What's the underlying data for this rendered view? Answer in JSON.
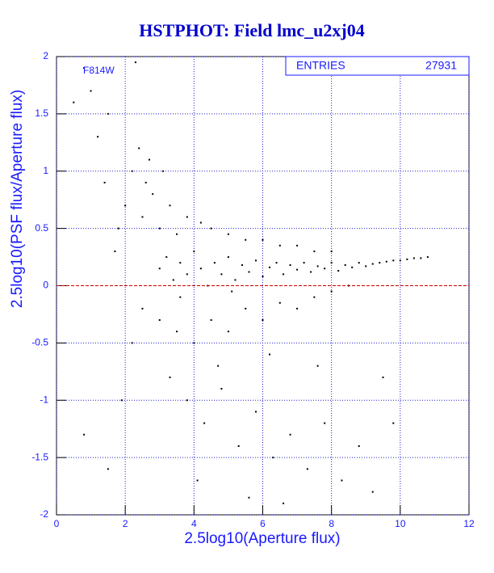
{
  "chart_data": {
    "type": "scatter",
    "title": "HSTPHOT: Field lmc_u2xj04",
    "x_label": "2.5log10(Aperture flux)",
    "y_label": "2.5log10(PSF flux/Aperture flux)",
    "annotation": "F814W",
    "entries_label": "ENTRIES",
    "entries": 27931,
    "xlim": [
      0,
      12
    ],
    "xticks": [
      0,
      2,
      4,
      6,
      8,
      10,
      12
    ],
    "ylim": [
      -2,
      2
    ],
    "yticks": [
      -2,
      -1.5,
      -1,
      -0.5,
      0,
      0.5,
      1,
      1.5,
      2
    ],
    "grid": true,
    "color": "#000000",
    "reference_line": {
      "value": 0,
      "color": "#cc0000"
    },
    "x": [
      3.0,
      3.2,
      3.4,
      3.6,
      3.8,
      4.0,
      4.2,
      4.4,
      4.6,
      4.8,
      5.0,
      5.2,
      5.4,
      5.6,
      5.8,
      6.0,
      6.2,
      6.4,
      6.6,
      6.8,
      7.0,
      7.2,
      7.4,
      7.6,
      7.8,
      8.0,
      8.2,
      8.4,
      8.6,
      8.8,
      9.0,
      9.2,
      9.4,
      9.6,
      9.8,
      10.0,
      10.2,
      10.4,
      10.6,
      10.8,
      2.5,
      2.8,
      3.0,
      3.3,
      3.5,
      3.8,
      4.2,
      4.5,
      5.0,
      5.5,
      6.0,
      6.5,
      7.0,
      7.5,
      8.0,
      2.2,
      2.4,
      2.6,
      2.0,
      1.8,
      1.5,
      1.2,
      1.0,
      0.8,
      1.4,
      2.7,
      3.1,
      0.5,
      2.3,
      1.7,
      2.5,
      3.0,
      3.5,
      4.0,
      4.5,
      5.0,
      5.5,
      6.0,
      6.5,
      7.0,
      7.5,
      8.0,
      8.5,
      3.3,
      3.8,
      4.3,
      4.8,
      5.3,
      5.8,
      6.3,
      6.8,
      7.3,
      7.8,
      8.3,
      8.8,
      9.2,
      4.1,
      5.6,
      6.6,
      2.2,
      1.9,
      1.5,
      0.8,
      9.5,
      9.8,
      7.6,
      6.2,
      3.6,
      4.7,
      5.1
    ],
    "values": [
      0.15,
      0.25,
      0.05,
      0.2,
      0.1,
      0.3,
      0.15,
      0.0,
      0.2,
      0.1,
      0.25,
      0.05,
      0.18,
      0.12,
      0.22,
      0.08,
      0.16,
      0.2,
      0.1,
      0.18,
      0.14,
      0.2,
      0.12,
      0.17,
      0.15,
      0.2,
      0.13,
      0.18,
      0.16,
      0.2,
      0.17,
      0.19,
      0.2,
      0.21,
      0.22,
      0.22,
      0.23,
      0.24,
      0.24,
      0.25,
      0.6,
      0.8,
      0.5,
      0.7,
      0.45,
      0.6,
      0.55,
      0.5,
      0.45,
      0.4,
      0.4,
      0.35,
      0.35,
      0.3,
      0.3,
      1.0,
      1.2,
      0.9,
      0.7,
      0.5,
      1.5,
      1.3,
      1.7,
      1.9,
      0.9,
      1.1,
      1.0,
      1.6,
      1.95,
      0.3,
      -0.2,
      -0.3,
      -0.4,
      -0.5,
      -0.3,
      -0.4,
      -0.2,
      -0.3,
      -0.15,
      -0.2,
      -0.1,
      -0.05,
      0.0,
      -0.8,
      -1.0,
      -1.2,
      -0.9,
      -1.4,
      -1.1,
      -1.5,
      -1.3,
      -1.6,
      -1.2,
      -1.7,
      -1.4,
      -1.8,
      -1.7,
      -1.85,
      -1.9,
      -0.5,
      -1.0,
      -1.6,
      -1.3,
      -0.8,
      -1.2,
      -0.7,
      -0.6,
      -0.1,
      -0.7,
      -0.05
    ]
  }
}
